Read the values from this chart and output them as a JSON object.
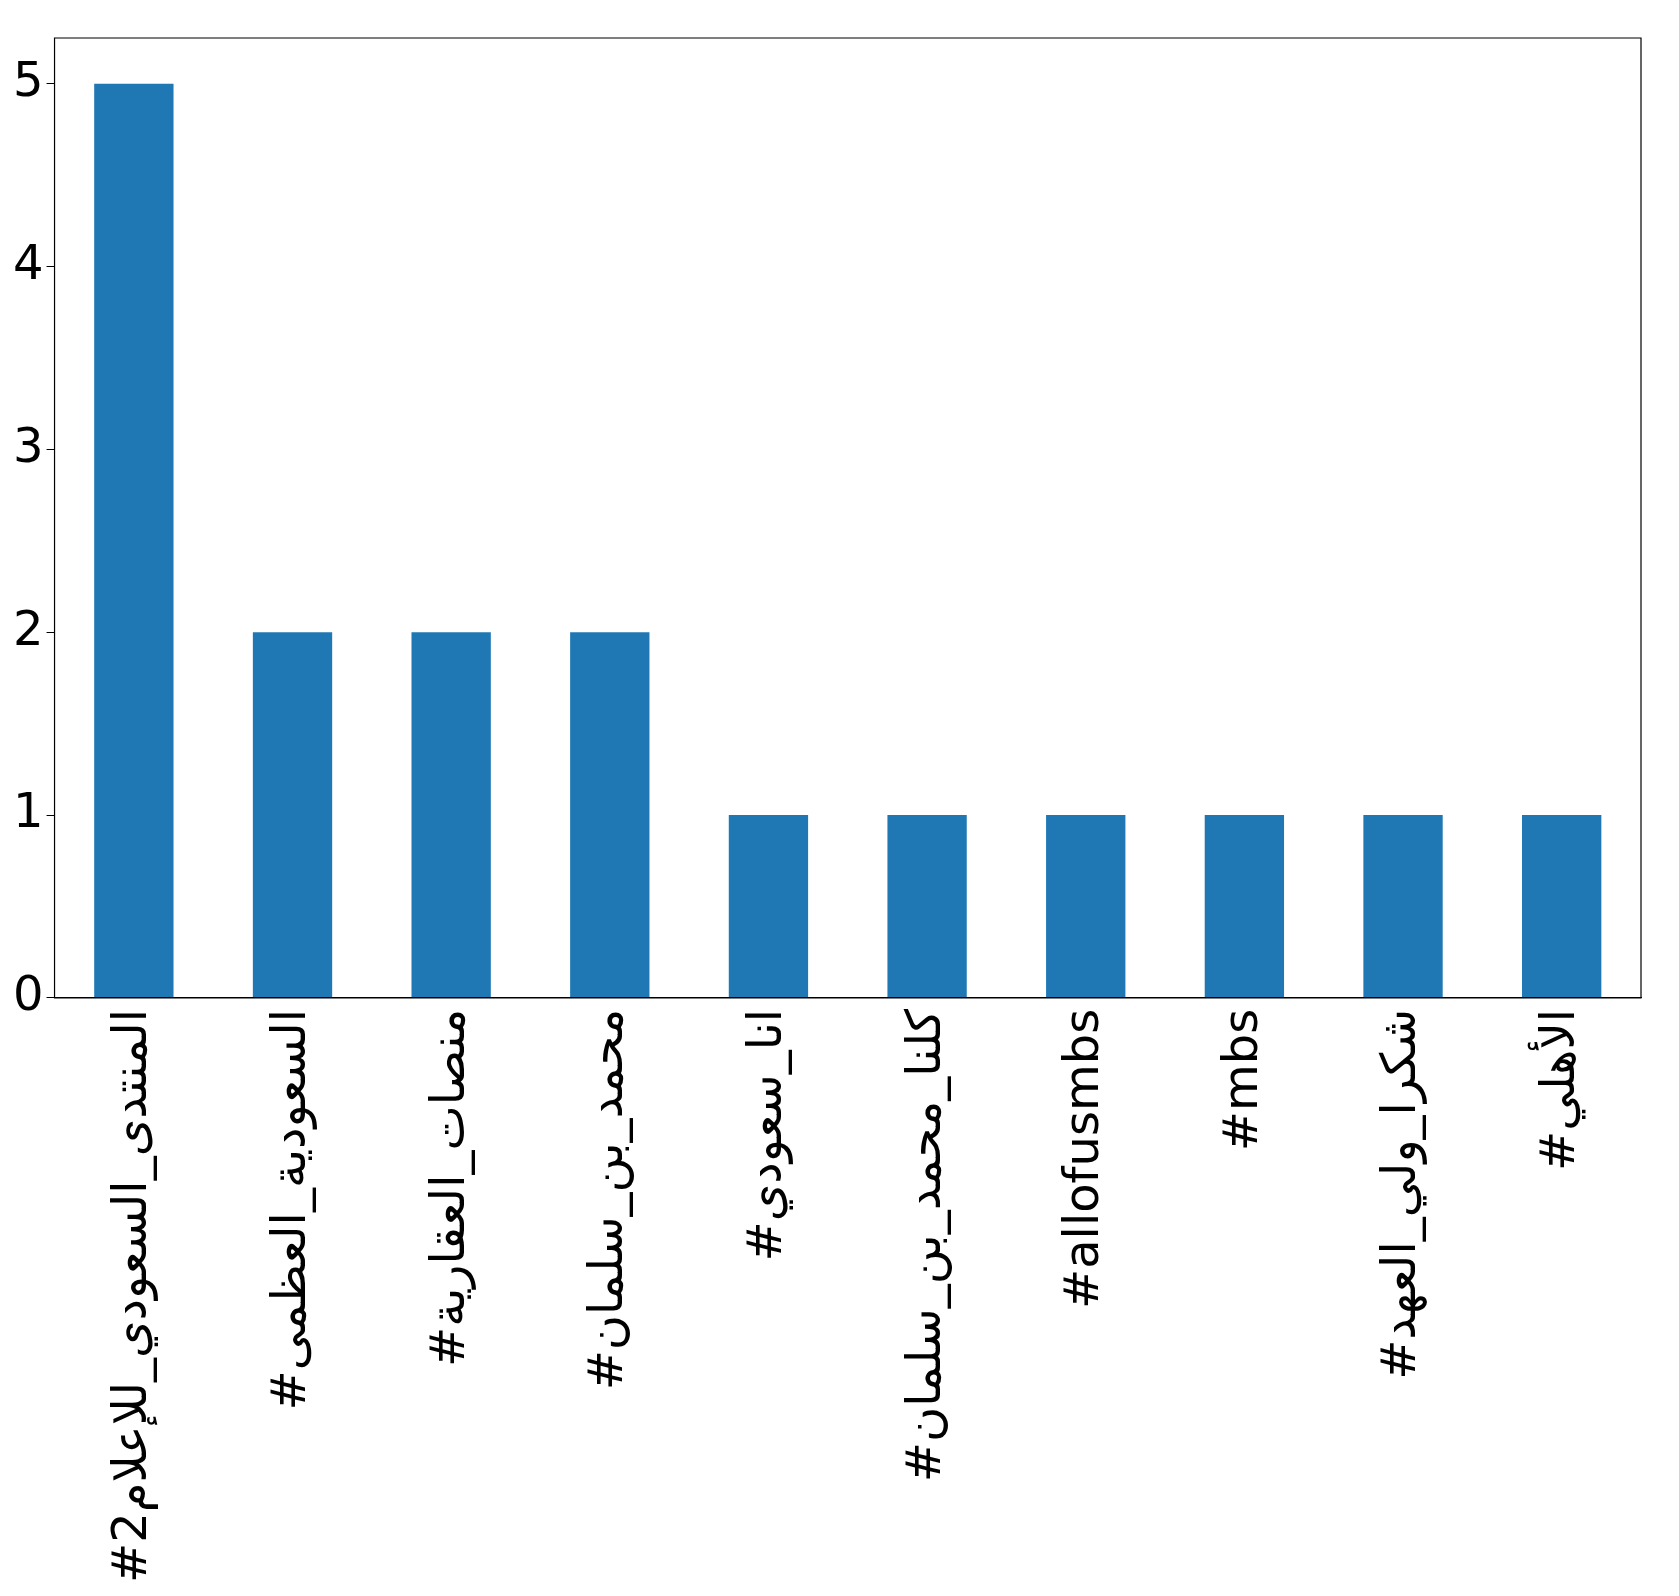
{
  "chart_data": {
    "type": "bar",
    "categories": [
      "#المنتدى_السعودي_للإعلام2",
      "#السعودية_العظمى",
      "#منصات_العقارية",
      "#محمد_بن_سلمان",
      "#انا_سعودي",
      "#كلنا_محمد_بن_سلمان",
      "#allofusmbs",
      "#mbs",
      "#شكرا_ولي_العهد",
      "#الأهلي"
    ],
    "values": [
      5,
      2,
      2,
      2,
      1,
      1,
      1,
      1,
      1,
      1
    ],
    "color": "#1f77b4",
    "ylim": [
      0,
      5.25
    ],
    "yticks": [
      0,
      1,
      2,
      3,
      4,
      5
    ],
    "grid": false,
    "legend": false
  }
}
